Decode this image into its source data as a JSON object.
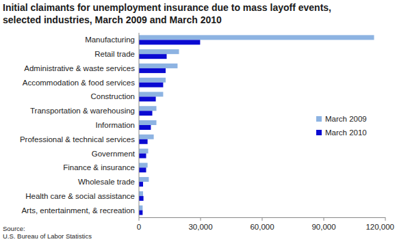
{
  "chart_data": {
    "type": "bar",
    "orientation": "horizontal",
    "title": [
      "Initial claimants for unemployment insurance due to mass layoff events,",
      "selected industries, March 2009 and March 2010"
    ],
    "source": [
      "Source:",
      "U.S. Bureau of Labor Statistics"
    ],
    "categories": [
      "Manufacturing",
      "Retail trade",
      "Administrative & waste services",
      "Accommodation & food services",
      "Construction",
      "Transportation & warehousing",
      "Information",
      "Professional & technical services",
      "Government",
      "Finance & insurance",
      "Wholesale trade",
      "Health care & social assistance",
      "Arts, entertainment, & recreation"
    ],
    "series": [
      {
        "name": "March 2009",
        "color": "#8db3e2",
        "values": [
          114500,
          19500,
          18800,
          13000,
          11800,
          8500,
          8500,
          7200,
          4500,
          4200,
          4800,
          2000,
          1800
        ]
      },
      {
        "name": "March 2010",
        "color": "#0a0ad2",
        "values": [
          29800,
          13500,
          13000,
          11800,
          8200,
          6500,
          5800,
          4200,
          3500,
          3500,
          2000,
          2200,
          1800
        ]
      }
    ],
    "xlim": [
      0,
      120000
    ],
    "xticks": [
      0,
      {
        "value": 30000,
        "label": "30,000"
      },
      {
        "value": 60000,
        "label": "60,000"
      },
      {
        "value": 90000,
        "label": "90,000"
      },
      {
        "value": 120000,
        "label": "120,000"
      }
    ],
    "grid": false,
    "legend": "right"
  }
}
